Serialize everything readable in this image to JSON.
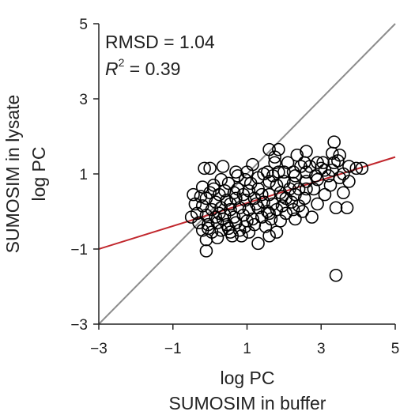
{
  "chart_data": {
    "type": "scatter",
    "xlabel_line1": "log PC",
    "xlabel_line2": "SUMOSIM in buffer",
    "ylabel_line1": "SUMOSIM in lysate",
    "ylabel_line2": "log PC",
    "xlim": [
      -3,
      5
    ],
    "ylim": [
      -3,
      5
    ],
    "xticks": [
      -3,
      -1,
      1,
      3,
      5
    ],
    "yticks": [
      -3,
      -1,
      1,
      3,
      5
    ],
    "xtick_labels": [
      "−3",
      "−1",
      "1",
      "3",
      "5"
    ],
    "ytick_labels": [
      "−3",
      "−1",
      "1",
      "3",
      "5"
    ],
    "grid": false,
    "annotations": {
      "rmsd": "RMSD = 1.04",
      "r2_symbol": "R",
      "r2_exp": "2",
      "r2_value": " = 0.39"
    },
    "reference_lines": [
      {
        "kind": "identity",
        "color": "#8c8c8c",
        "from": [
          -3,
          -3
        ],
        "to": [
          5,
          5
        ]
      },
      {
        "kind": "regression",
        "color": "#c1272d",
        "from": [
          -3,
          -1.0
        ],
        "to": [
          5,
          1.45
        ]
      }
    ],
    "series": [
      {
        "marker": "open-circle",
        "color": "#000000",
        "points": [
          [
            1.6,
            1.65
          ],
          [
            1.85,
            1.65
          ],
          [
            2.6,
            1.6
          ],
          [
            3.3,
            1.55
          ],
          [
            3.5,
            1.5
          ],
          [
            1.75,
            1.45
          ],
          [
            2.35,
            1.5
          ],
          [
            3.35,
            1.85
          ],
          [
            3.45,
            1.35
          ],
          [
            2.55,
            1.3
          ],
          [
            2.9,
            1.3
          ],
          [
            3.05,
            1.3
          ],
          [
            3.35,
            1.3
          ],
          [
            1.75,
            1.3
          ],
          [
            1.15,
            1.25
          ],
          [
            3.75,
            1.2
          ],
          [
            3.95,
            1.15
          ],
          [
            4.1,
            1.15
          ],
          [
            -0.15,
            1.15
          ],
          [
            0.0,
            1.15
          ],
          [
            0.35,
            1.2
          ],
          [
            0.7,
            1.05
          ],
          [
            1.0,
            1.05
          ],
          [
            1.55,
            1.05
          ],
          [
            1.85,
            1.05
          ],
          [
            2.25,
            1.05
          ],
          [
            2.6,
            1.05
          ],
          [
            3.1,
            1.1
          ],
          [
            3.6,
            1.0
          ],
          [
            3.75,
            0.8
          ],
          [
            2.9,
            0.85
          ],
          [
            2.0,
            0.8
          ],
          [
            1.6,
            0.8
          ],
          [
            1.3,
            0.9
          ],
          [
            0.95,
            0.85
          ],
          [
            2.3,
            0.95
          ],
          [
            3.25,
            0.7
          ],
          [
            2.8,
            0.6
          ],
          [
            2.4,
            0.6
          ],
          [
            3.6,
            0.5
          ],
          [
            3.1,
            0.45
          ],
          [
            2.55,
            0.35
          ],
          [
            2.3,
            0.45
          ],
          [
            3.4,
            0.1
          ],
          [
            3.7,
            0.1
          ],
          [
            2.9,
            0.2
          ],
          [
            2.5,
            0.0
          ],
          [
            2.75,
            -0.15
          ],
          [
            2.25,
            0.05
          ],
          [
            3.4,
            -1.7
          ],
          [
            -0.1,
            -1.05
          ],
          [
            -0.45,
            0.45
          ],
          [
            -0.2,
            0.65
          ],
          [
            0.1,
            0.7
          ],
          [
            0.4,
            0.55
          ],
          [
            0.5,
            0.75
          ],
          [
            0.75,
            0.6
          ],
          [
            1.05,
            0.55
          ],
          [
            1.3,
            0.6
          ],
          [
            1.6,
            0.45
          ],
          [
            1.9,
            0.5
          ],
          [
            2.05,
            0.35
          ],
          [
            0.25,
            0.45
          ],
          [
            -0.1,
            0.35
          ],
          [
            0.15,
            0.25
          ],
          [
            0.45,
            0.3
          ],
          [
            0.7,
            0.35
          ],
          [
            0.95,
            0.3
          ],
          [
            1.2,
            0.35
          ],
          [
            1.45,
            0.25
          ],
          [
            1.7,
            0.2
          ],
          [
            1.95,
            0.15
          ],
          [
            -0.2,
            0.15
          ],
          [
            0.05,
            0.05
          ],
          [
            0.3,
            0.1
          ],
          [
            0.55,
            0.05
          ],
          [
            0.8,
            0.1
          ],
          [
            1.05,
            0.05
          ],
          [
            1.3,
            0.1
          ],
          [
            1.55,
            0.0
          ],
          [
            1.8,
            0.05
          ],
          [
            2.05,
            -0.05
          ],
          [
            -0.35,
            -0.05
          ],
          [
            -0.1,
            -0.1
          ],
          [
            0.15,
            -0.15
          ],
          [
            0.4,
            -0.1
          ],
          [
            0.65,
            -0.15
          ],
          [
            0.9,
            -0.1
          ],
          [
            1.15,
            -0.2
          ],
          [
            1.4,
            -0.15
          ],
          [
            1.65,
            -0.2
          ],
          [
            1.9,
            -0.25
          ],
          [
            -0.3,
            -0.3
          ],
          [
            -0.05,
            -0.35
          ],
          [
            0.2,
            -0.3
          ],
          [
            0.45,
            -0.35
          ],
          [
            0.7,
            -0.3
          ],
          [
            0.95,
            -0.4
          ],
          [
            1.2,
            -0.35
          ],
          [
            1.5,
            -0.4
          ],
          [
            -0.2,
            -0.5
          ],
          [
            0.05,
            -0.55
          ],
          [
            0.3,
            -0.5
          ],
          [
            0.55,
            -0.55
          ],
          [
            0.8,
            -0.5
          ],
          [
            1.05,
            -0.55
          ],
          [
            -0.1,
            -0.75
          ],
          [
            0.2,
            -0.7
          ],
          [
            0.6,
            -0.65
          ],
          [
            1.8,
            -0.55
          ],
          [
            1.3,
            -0.85
          ],
          [
            1.6,
            -0.65
          ],
          [
            -0.05,
            -0.45
          ],
          [
            0.5,
            -0.45
          ],
          [
            0.85,
            -0.65
          ],
          [
            0.0,
            0.5
          ],
          [
            -0.4,
            0.2
          ],
          [
            -0.5,
            -0.15
          ],
          [
            0.3,
            0.85
          ],
          [
            0.75,
            0.95
          ],
          [
            1.1,
            0.75
          ],
          [
            1.4,
            0.45
          ],
          [
            1.8,
            0.7
          ],
          [
            2.15,
            0.6
          ],
          [
            2.2,
            0.25
          ],
          [
            2.4,
            0.15
          ],
          [
            2.6,
            0.6
          ],
          [
            2.0,
            1.05
          ],
          [
            2.7,
            1.2
          ],
          [
            3.0,
            1.15
          ],
          [
            3.2,
            0.95
          ],
          [
            3.5,
            0.9
          ],
          [
            3.3,
            1.1
          ],
          [
            2.85,
            0.95
          ],
          [
            2.45,
            1.2
          ],
          [
            2.1,
            1.3
          ],
          [
            1.45,
            1.0
          ],
          [
            0.55,
            0.2
          ],
          [
            0.35,
            -0.2
          ],
          [
            0.1,
            0.6
          ],
          [
            1.0,
            -0.25
          ],
          [
            1.25,
            0.2
          ],
          [
            1.6,
            -0.05
          ],
          [
            2.3,
            -0.2
          ],
          [
            1.7,
            0.95
          ],
          [
            2.25,
            0.75
          ],
          [
            2.6,
            0.8
          ],
          [
            0.9,
            0.45
          ],
          [
            0.65,
            0.5
          ],
          [
            0.25,
            -0.05
          ],
          [
            -0.25,
            0.4
          ],
          [
            1.95,
            0.4
          ]
        ]
      }
    ]
  }
}
